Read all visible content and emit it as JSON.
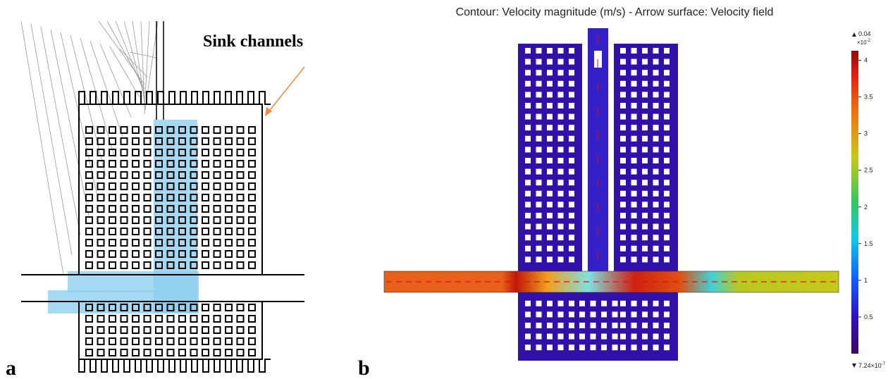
{
  "panel_a": {
    "label": "a",
    "annotation": "Sink channels"
  },
  "panel_b": {
    "label": "b",
    "title": "Contour: Velocity magnitude (m/s) - Arrow surface: Velocity field",
    "colorbar": {
      "max_label": "0.04",
      "scale_base": "×10",
      "scale_exponent": "-2",
      "min_label_base": "7.24×10",
      "min_label_exponent": "-7",
      "range": [
        0,
        4.13
      ],
      "ticks": [
        4,
        3.5,
        3,
        2.5,
        2,
        1.5,
        1,
        0.5
      ]
    }
  }
}
